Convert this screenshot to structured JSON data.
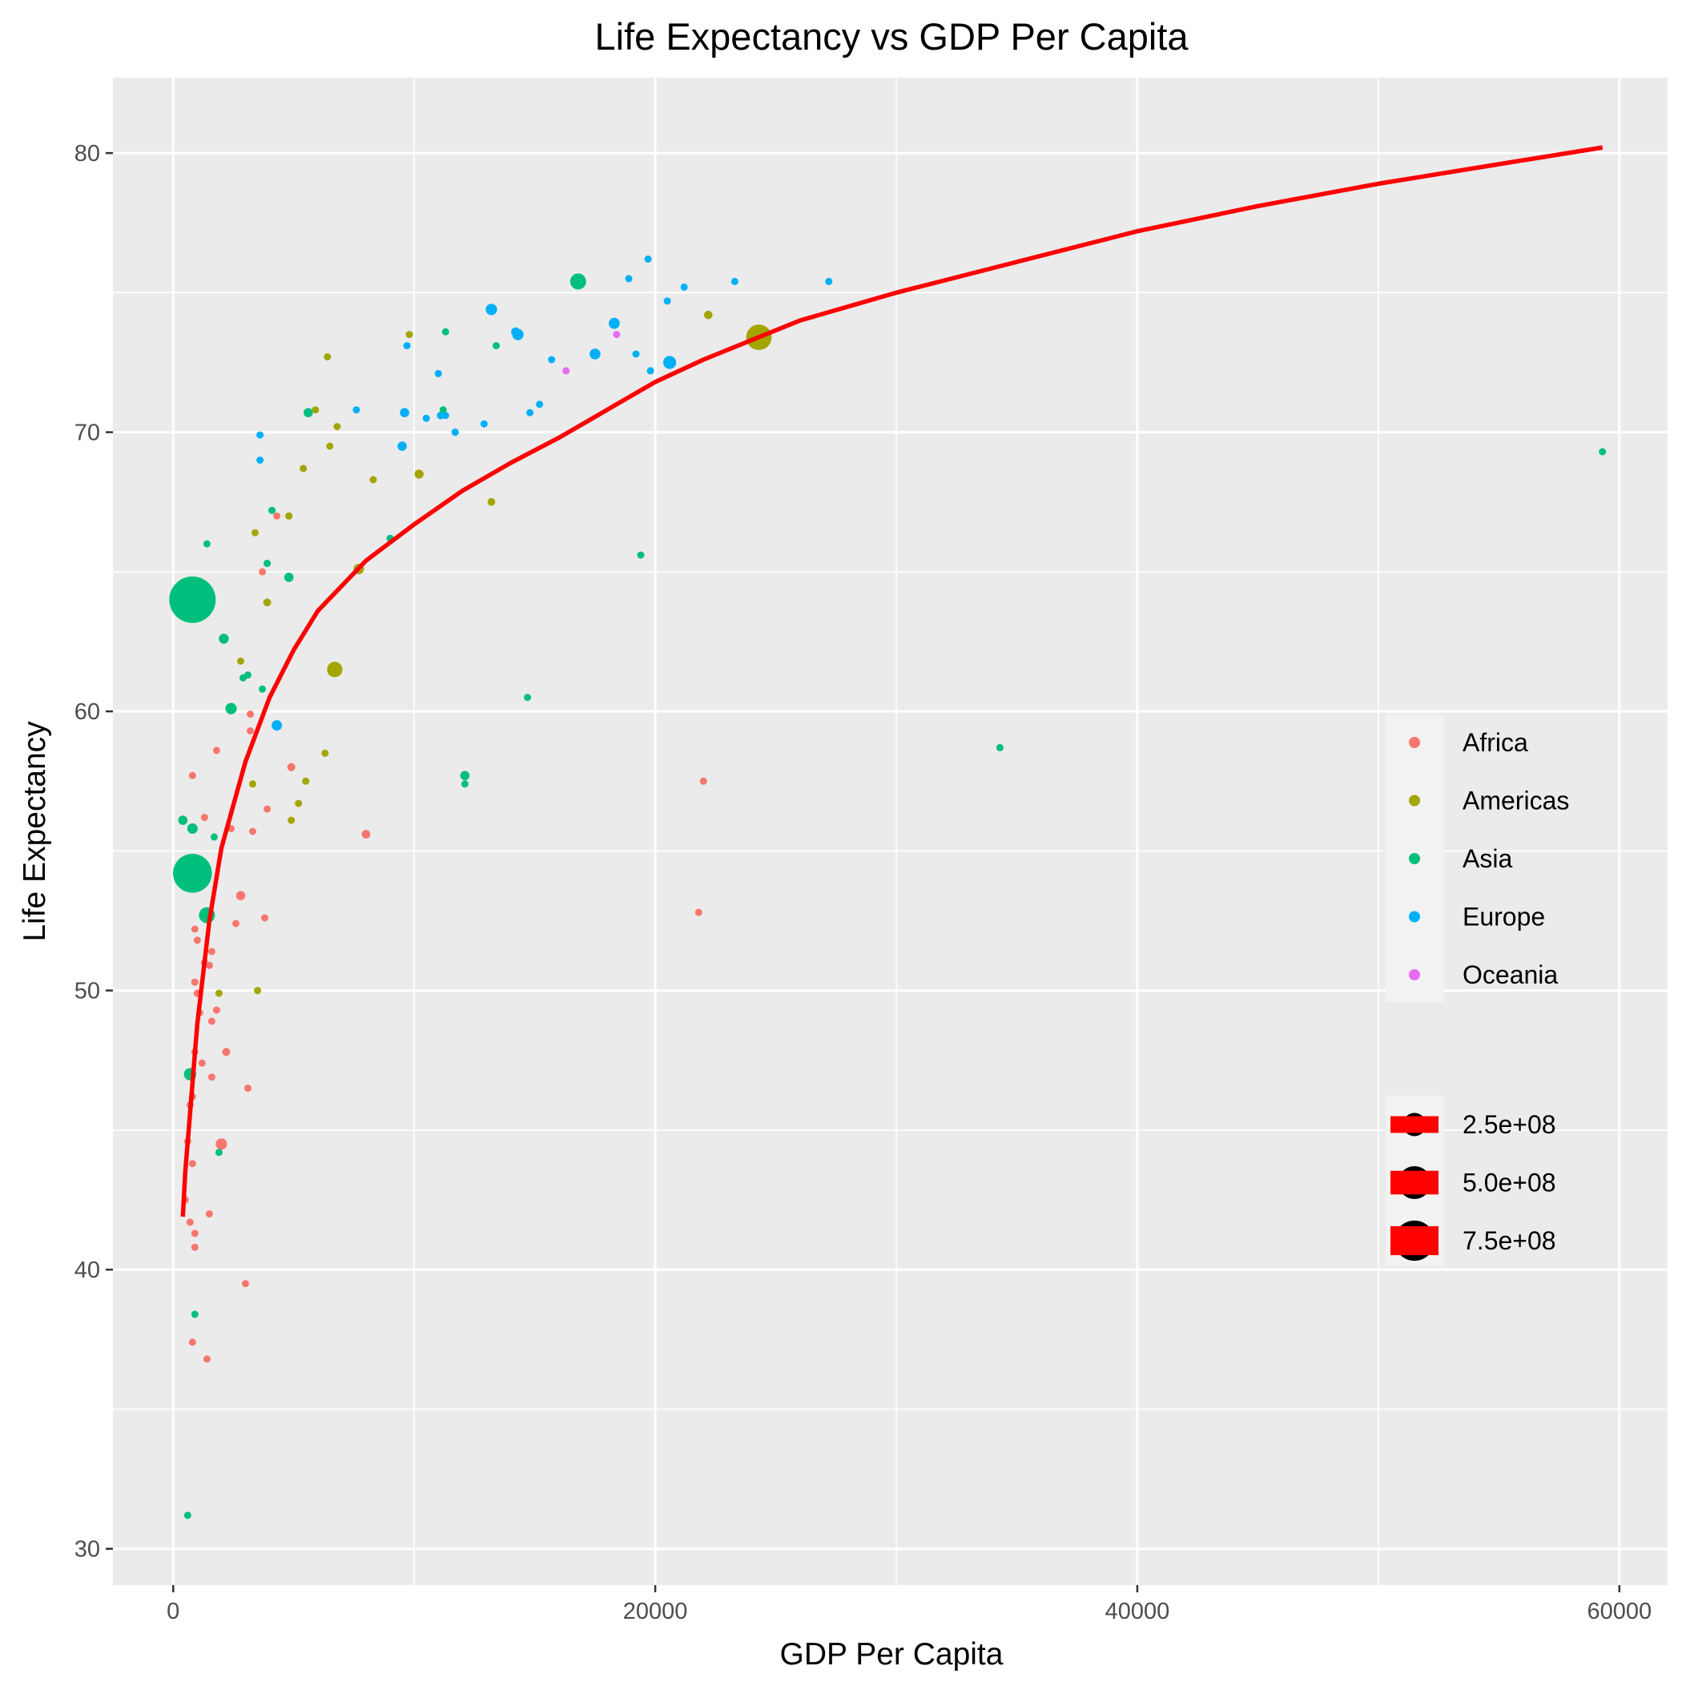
{
  "chart_data": {
    "type": "scatter",
    "title": "Life Expectancy vs GDP Per Capita",
    "xlabel": "GDP Per Capita",
    "ylabel": "Life Expectancy",
    "xlim": [
      -2500,
      62000
    ],
    "ylim": [
      28.7,
      82.7
    ],
    "xticks": [
      0,
      20000,
      40000,
      60000
    ],
    "xtick_labels": [
      "0",
      "20000",
      "40000",
      "60000"
    ],
    "yticks": [
      30,
      40,
      50,
      60,
      70,
      80
    ],
    "ytick_labels": [
      "30",
      "40",
      "50",
      "60",
      "70",
      "80"
    ],
    "grid": true,
    "legend_placement": "right",
    "colors": {
      "panel": "#EBEBEB",
      "grid": "#FFFFFF",
      "trend": "#FF0000",
      "Africa": "#F8766D",
      "Americas": "#A3A500",
      "Asia": "#00BF7D",
      "Europe": "#00B0F6",
      "Oceania": "#E76BF3"
    },
    "legend": {
      "color_entries": [
        "Africa",
        "Americas",
        "Asia",
        "Europe",
        "Oceania"
      ],
      "size_entries": [
        {
          "label": "2.5e+08",
          "value": 250000000
        },
        {
          "label": "5.0e+08",
          "value": 500000000
        },
        {
          "label": "7.5e+08",
          "value": 750000000
        }
      ]
    },
    "trend_line": {
      "name": "",
      "x": [
        400,
        500,
        700,
        1000,
        1500,
        2000,
        3000,
        4000,
        5000,
        6000,
        8000,
        10000,
        12000,
        14000,
        16000,
        18000,
        20000,
        22000,
        24000,
        26000,
        30000,
        35000,
        40000,
        45000,
        50000,
        55000,
        59300
      ],
      "y": [
        41.9,
        43.5,
        45.6,
        48.8,
        52.5,
        55.1,
        58.2,
        60.5,
        62.2,
        63.6,
        65.4,
        66.7,
        67.9,
        68.9,
        69.8,
        70.8,
        71.8,
        72.6,
        73.3,
        74.0,
        75.0,
        76.1,
        77.2,
        78.1,
        78.9,
        79.6,
        80.2
      ]
    },
    "series": [
      {
        "name": "Africa",
        "points": [
          {
            "x": 800,
            "y": 57.7,
            "size": 12000000
          },
          {
            "x": 1300,
            "y": 56.2,
            "size": 20000000
          },
          {
            "x": 900,
            "y": 52.2,
            "size": 8000000
          },
          {
            "x": 1000,
            "y": 51.8,
            "size": 15000000
          },
          {
            "x": 1300,
            "y": 51.0,
            "size": 12000000
          },
          {
            "x": 1500,
            "y": 50.9,
            "size": 10000000
          },
          {
            "x": 1600,
            "y": 51.4,
            "size": 14000000
          },
          {
            "x": 900,
            "y": 50.3,
            "size": 20000000
          },
          {
            "x": 1000,
            "y": 49.9,
            "size": 25000000
          },
          {
            "x": 1100,
            "y": 49.2,
            "size": 16000000
          },
          {
            "x": 1600,
            "y": 48.9,
            "size": 13000000
          },
          {
            "x": 1800,
            "y": 49.3,
            "size": 18000000
          },
          {
            "x": 900,
            "y": 47.8,
            "size": 22000000
          },
          {
            "x": 2200,
            "y": 47.8,
            "size": 30000000
          },
          {
            "x": 1200,
            "y": 47.4,
            "size": 11000000
          },
          {
            "x": 1600,
            "y": 46.9,
            "size": 15000000
          },
          {
            "x": 800,
            "y": 46.2,
            "size": 10000000
          },
          {
            "x": 700,
            "y": 45.9,
            "size": 14000000
          },
          {
            "x": 3100,
            "y": 46.5,
            "size": 6000000
          },
          {
            "x": 600,
            "y": 44.6,
            "size": 24000000
          },
          {
            "x": 2000,
            "y": 44.5,
            "size": 60000000
          },
          {
            "x": 800,
            "y": 43.8,
            "size": 9000000
          },
          {
            "x": 500,
            "y": 42.5,
            "size": 16000000
          },
          {
            "x": 1500,
            "y": 42.0,
            "size": 12000000
          },
          {
            "x": 700,
            "y": 41.7,
            "size": 13000000
          },
          {
            "x": 900,
            "y": 41.3,
            "size": 15000000
          },
          {
            "x": 900,
            "y": 40.8,
            "size": 14000000
          },
          {
            "x": 3000,
            "y": 39.5,
            "size": 17000000
          },
          {
            "x": 800,
            "y": 37.4,
            "size": 7000000
          },
          {
            "x": 1400,
            "y": 36.8,
            "size": 10000000
          },
          {
            "x": 2800,
            "y": 53.4,
            "size": 40000000
          },
          {
            "x": 2600,
            "y": 52.4,
            "size": 18000000
          },
          {
            "x": 3800,
            "y": 52.6,
            "size": 8000000
          },
          {
            "x": 2400,
            "y": 55.8,
            "size": 22000000
          },
          {
            "x": 3300,
            "y": 55.7,
            "size": 12000000
          },
          {
            "x": 8000,
            "y": 55.6,
            "size": 35000000
          },
          {
            "x": 3900,
            "y": 56.5,
            "size": 7000000
          },
          {
            "x": 4900,
            "y": 58.0,
            "size": 30000000
          },
          {
            "x": 1800,
            "y": 58.6,
            "size": 5000000
          },
          {
            "x": 3200,
            "y": 59.9,
            "size": 13000000
          },
          {
            "x": 3200,
            "y": 59.3,
            "size": 9000000
          },
          {
            "x": 3700,
            "y": 65.0,
            "size": 7000000
          },
          {
            "x": 4300,
            "y": 67.0,
            "size": 6000000
          },
          {
            "x": 22000,
            "y": 57.5,
            "size": 11000000
          },
          {
            "x": 21800,
            "y": 52.8,
            "size": 9000000
          }
        ]
      },
      {
        "name": "Americas",
        "points": [
          {
            "x": 24300,
            "y": 73.4,
            "size": 300000000
          },
          {
            "x": 22200,
            "y": 74.2,
            "size": 33000000
          },
          {
            "x": 9800,
            "y": 73.5,
            "size": 12000000
          },
          {
            "x": 6400,
            "y": 72.7,
            "size": 15000000
          },
          {
            "x": 5900,
            "y": 70.8,
            "size": 12000000
          },
          {
            "x": 6800,
            "y": 70.2,
            "size": 11000000
          },
          {
            "x": 6500,
            "y": 69.5,
            "size": 10000000
          },
          {
            "x": 5400,
            "y": 68.7,
            "size": 10000000
          },
          {
            "x": 10200,
            "y": 68.5,
            "size": 38000000
          },
          {
            "x": 8300,
            "y": 68.3,
            "size": 9000000
          },
          {
            "x": 13200,
            "y": 67.5,
            "size": 27000000
          },
          {
            "x": 3400,
            "y": 66.4,
            "size": 9000000
          },
          {
            "x": 4800,
            "y": 67.0,
            "size": 25000000
          },
          {
            "x": 7700,
            "y": 65.1,
            "size": 50000000
          },
          {
            "x": 3900,
            "y": 63.9,
            "size": 28000000
          },
          {
            "x": 2800,
            "y": 61.8,
            "size": 15000000
          },
          {
            "x": 6700,
            "y": 61.5,
            "size": 110000000
          },
          {
            "x": 6300,
            "y": 58.5,
            "size": 22000000
          },
          {
            "x": 5500,
            "y": 57.5,
            "size": 14000000
          },
          {
            "x": 3300,
            "y": 57.4,
            "size": 10000000
          },
          {
            "x": 5200,
            "y": 56.7,
            "size": 14000000
          },
          {
            "x": 4900,
            "y": 56.1,
            "size": 13000000
          },
          {
            "x": 1900,
            "y": 49.9,
            "size": 14000000
          },
          {
            "x": 3500,
            "y": 50.0,
            "size": 13000000
          }
        ]
      },
      {
        "name": "Asia",
        "points": [
          {
            "x": 800,
            "y": 64.0,
            "size": 1000000000
          },
          {
            "x": 800,
            "y": 54.2,
            "size": 700000000
          },
          {
            "x": 1400,
            "y": 52.7,
            "size": 120000000
          },
          {
            "x": 16800,
            "y": 75.4,
            "size": 120000000
          },
          {
            "x": 11300,
            "y": 73.6,
            "size": 14000000
          },
          {
            "x": 13400,
            "y": 73.1,
            "size": 12000000
          },
          {
            "x": 9000,
            "y": 66.2,
            "size": 11000000
          },
          {
            "x": 5600,
            "y": 70.7,
            "size": 40000000
          },
          {
            "x": 11200,
            "y": 70.8,
            "size": 18000000
          },
          {
            "x": 1400,
            "y": 66.0,
            "size": 20000000
          },
          {
            "x": 4100,
            "y": 67.2,
            "size": 25000000
          },
          {
            "x": 3900,
            "y": 65.3,
            "size": 25000000
          },
          {
            "x": 4800,
            "y": 64.8,
            "size": 40000000
          },
          {
            "x": 2100,
            "y": 62.6,
            "size": 45000000
          },
          {
            "x": 3100,
            "y": 61.3,
            "size": 16000000
          },
          {
            "x": 2900,
            "y": 61.2,
            "size": 14000000
          },
          {
            "x": 3700,
            "y": 60.8,
            "size": 9000000
          },
          {
            "x": 2400,
            "y": 60.1,
            "size": 60000000
          },
          {
            "x": 14700,
            "y": 60.5,
            "size": 20000000
          },
          {
            "x": 19400,
            "y": 65.6,
            "size": 7000000
          },
          {
            "x": 34300,
            "y": 58.7,
            "size": 12000000
          },
          {
            "x": 12100,
            "y": 57.7,
            "size": 40000000
          },
          {
            "x": 12100,
            "y": 57.4,
            "size": 5000000
          },
          {
            "x": 1700,
            "y": 55.5,
            "size": 10000000
          },
          {
            "x": 400,
            "y": 56.1,
            "size": 40000000
          },
          {
            "x": 800,
            "y": 55.8,
            "size": 50000000
          },
          {
            "x": 700,
            "y": 47.0,
            "size": 70000000
          },
          {
            "x": 1900,
            "y": 44.2,
            "size": 20000000
          },
          {
            "x": 900,
            "y": 38.4,
            "size": 20000000
          },
          {
            "x": 600,
            "y": 31.2,
            "size": 15000000
          },
          {
            "x": 59300,
            "y": 69.3,
            "size": 8000000
          }
        ]
      },
      {
        "name": "Europe",
        "points": [
          {
            "x": 19700,
            "y": 76.2,
            "size": 4000000
          },
          {
            "x": 18900,
            "y": 75.5,
            "size": 18000000
          },
          {
            "x": 21200,
            "y": 75.2,
            "size": 22000000
          },
          {
            "x": 23300,
            "y": 75.4,
            "size": 15000000
          },
          {
            "x": 27200,
            "y": 75.4,
            "size": 17000000
          },
          {
            "x": 20500,
            "y": 74.7,
            "size": 15000000
          },
          {
            "x": 13200,
            "y": 74.4,
            "size": 60000000
          },
          {
            "x": 18300,
            "y": 73.9,
            "size": 56000000
          },
          {
            "x": 14200,
            "y": 73.6,
            "size": 35000000
          },
          {
            "x": 14300,
            "y": 73.5,
            "size": 60000000
          },
          {
            "x": 17500,
            "y": 72.8,
            "size": 55000000
          },
          {
            "x": 19200,
            "y": 72.8,
            "size": 17000000
          },
          {
            "x": 20600,
            "y": 72.5,
            "size": 78000000
          },
          {
            "x": 15700,
            "y": 72.6,
            "size": 16000000
          },
          {
            "x": 19800,
            "y": 72.2,
            "size": 16000000
          },
          {
            "x": 9700,
            "y": 73.1,
            "size": 8000000
          },
          {
            "x": 11000,
            "y": 72.1,
            "size": 10000000
          },
          {
            "x": 15200,
            "y": 71.0,
            "size": 10000000
          },
          {
            "x": 14800,
            "y": 70.7,
            "size": 20000000
          },
          {
            "x": 7600,
            "y": 70.8,
            "size": 18000000
          },
          {
            "x": 9600,
            "y": 70.7,
            "size": 40000000
          },
          {
            "x": 10500,
            "y": 70.5,
            "size": 20000000
          },
          {
            "x": 11100,
            "y": 70.6,
            "size": 27000000
          },
          {
            "x": 11300,
            "y": 70.6,
            "size": 22000000
          },
          {
            "x": 11700,
            "y": 70.0,
            "size": 25000000
          },
          {
            "x": 12900,
            "y": 70.3,
            "size": 22000000
          },
          {
            "x": 9500,
            "y": 69.5,
            "size": 40000000
          },
          {
            "x": 3600,
            "y": 69.9,
            "size": 15000000
          },
          {
            "x": 3600,
            "y": 69.0,
            "size": 10000000
          },
          {
            "x": 4300,
            "y": 59.5,
            "size": 50000000
          }
        ]
      },
      {
        "name": "Oceania",
        "points": [
          {
            "x": 18400,
            "y": 73.5,
            "size": 15000000
          },
          {
            "x": 16300,
            "y": 72.2,
            "size": 12000000
          }
        ]
      }
    ]
  }
}
